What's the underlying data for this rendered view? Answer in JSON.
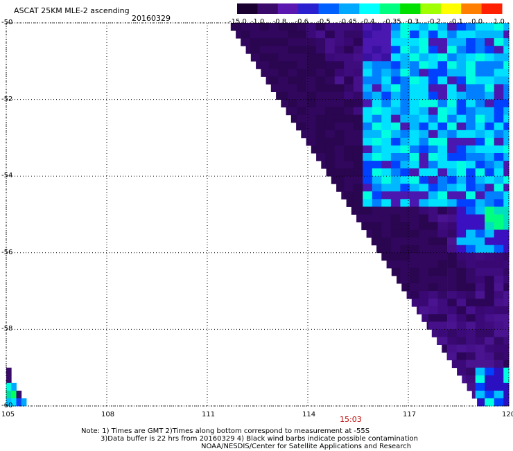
{
  "header": {
    "title": "ASCAT 25KM MLE-2 ascending",
    "date": "20160329"
  },
  "time_label": "15:03",
  "notes": {
    "line1": "Note: 1) Times are GMT 2)Times along bottom correspond to measurement at -55S",
    "line2": "3)Data buffer is 22 hrs from 20160329 4) Black wind barbs indicate possible contamination",
    "line3": "NOAA/NESDIS/Center for Satellite Applications and Research"
  },
  "colorbar": {
    "labels": [
      "-15.0",
      "-1.0",
      "-0.8",
      "-0.6",
      "-0.5",
      "-0.45",
      "-0.4",
      "-0.35",
      "-0.3",
      "-0.2",
      "-0.1",
      "0.0",
      "1.0"
    ],
    "colors": [
      "#1a0030",
      "#3a0a6a",
      "#5a18b0",
      "#2a20d0",
      "#0060ff",
      "#00a8ff",
      "#00ffff",
      "#00ff80",
      "#00e000",
      "#a0ff00",
      "#ffff00",
      "#ff8000",
      "#ff2000"
    ]
  },
  "chart_data": {
    "type": "heatmap",
    "title": "ASCAT 25KM MLE-2 ascending",
    "date": "20160329",
    "x_ticks": [
      "105",
      "108",
      "111",
      "114",
      "117",
      "120"
    ],
    "y_ticks": [
      "-50",
      "-52",
      "-54",
      "-56",
      "-58",
      "-60"
    ],
    "xlim": [
      105,
      120
    ],
    "ylim": [
      -60,
      -50
    ],
    "grid": true,
    "swath_edge": {
      "west_lon_at_lat_-50": 111.7,
      "west_lon_at_lat_-60": 119.2
    },
    "dominant_value_range": "-15.0 to -1.0",
    "regions": [
      {
        "description": "swath interior",
        "lon": [
          112,
          120
        ],
        "lat": [
          -60,
          -50
        ],
        "value": "-15.0 to -1.0"
      },
      {
        "description": "northeast patch",
        "lon": [
          115.5,
          120
        ],
        "lat": [
          -54.8,
          -50
        ],
        "value": "-0.6 to -0.4"
      },
      {
        "description": "east edge patch",
        "lon": [
          118.5,
          120
        ],
        "lat": [
          -56,
          -53
        ],
        "value": "-0.5 to -0.4"
      },
      {
        "description": "southwest corner patch",
        "lon": [
          105,
          105.8
        ],
        "lat": [
          -60,
          -59.2
        ],
        "value": "-0.5 to -0.4"
      },
      {
        "description": "southeast corner patch",
        "lon": [
          118.8,
          120
        ],
        "lat": [
          -60,
          -59
        ],
        "value": "-0.6 to -0.4"
      }
    ]
  }
}
